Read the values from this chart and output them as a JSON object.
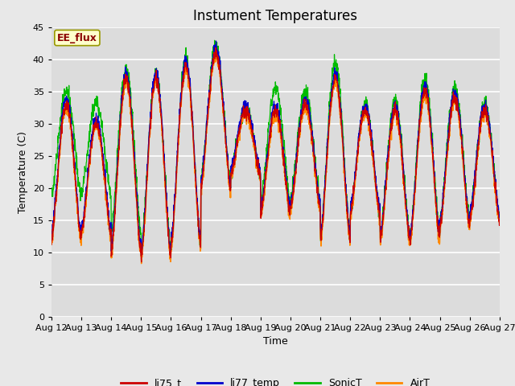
{
  "title": "Instument Temperatures",
  "xlabel": "Time",
  "ylabel": "Temperature (C)",
  "ylim": [
    0,
    45
  ],
  "yticks": [
    0,
    5,
    10,
    15,
    20,
    25,
    30,
    35,
    40,
    45
  ],
  "x_labels": [
    "Aug 12",
    "Aug 13",
    "Aug 14",
    "Aug 15",
    "Aug 16",
    "Aug 17",
    "Aug 18",
    "Aug 19",
    "Aug 20",
    "Aug 21",
    "Aug 22",
    "Aug 23",
    "Aug 24",
    "Aug 25",
    "Aug 26",
    "Aug 27"
  ],
  "annotation_text": "EE_flux",
  "colors": {
    "li75_t": "#cc0000",
    "li77_temp": "#0000cc",
    "SonicT": "#00bb00",
    "AirT": "#ff8800"
  },
  "fig_bg_color": "#e8e8e8",
  "plot_bg_color": "#dcdcdc",
  "title_fontsize": 12,
  "axis_fontsize": 9,
  "tick_fontsize": 8,
  "legend_fontsize": 9
}
